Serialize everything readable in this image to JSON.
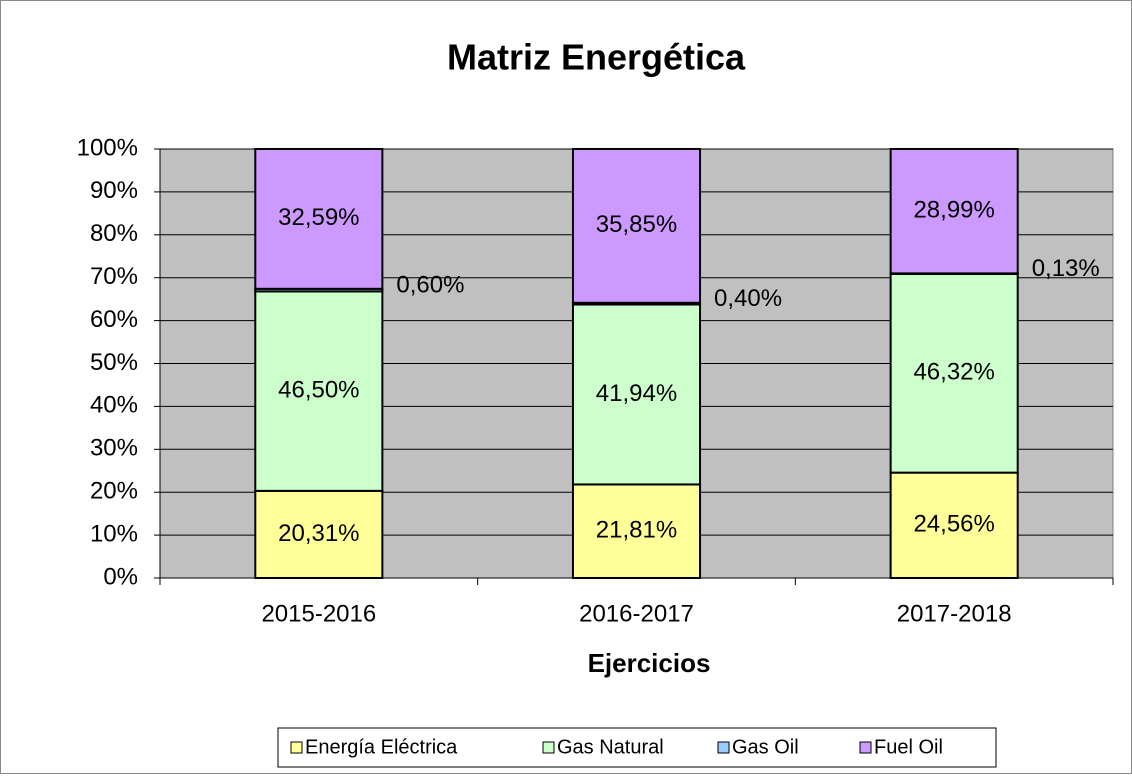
{
  "chart_data": {
    "type": "bar",
    "stacked": true,
    "title": "Matriz Energética",
    "x_label": "Ejercicios",
    "categories": [
      "2015-2016",
      "2016-2017",
      "2017-2018"
    ],
    "series": [
      {
        "name": "Energía Eléctrica",
        "color": "#ffff99",
        "values": [
          20.31,
          21.81,
          24.56
        ],
        "value_labels": [
          "20,31%",
          "21,81%",
          "24,56%"
        ]
      },
      {
        "name": "Gas Natural",
        "color": "#ccffcc",
        "values": [
          46.5,
          41.94,
          46.32
        ],
        "value_labels": [
          "46,50%",
          "41,94%",
          "46,32%"
        ]
      },
      {
        "name": "Gas Oil",
        "color": "#99ccff",
        "values": [
          0.6,
          0.4,
          0.13
        ],
        "value_labels": [
          "0,60%",
          "0,40%",
          "0,13%"
        ]
      },
      {
        "name": "Fuel Oil",
        "color": "#cc99ff",
        "values": [
          32.59,
          35.85,
          28.99
        ],
        "value_labels": [
          "32,59%",
          "35,85%",
          "28,99%"
        ]
      }
    ],
    "ylim": [
      0,
      100
    ],
    "yticks": [
      {
        "value": 0,
        "label": "0%"
      },
      {
        "value": 10,
        "label": "10%"
      },
      {
        "value": 20,
        "label": "20%"
      },
      {
        "value": 30,
        "label": "30%"
      },
      {
        "value": 40,
        "label": "40%"
      },
      {
        "value": 50,
        "label": "50%"
      },
      {
        "value": 60,
        "label": "60%"
      },
      {
        "value": 70,
        "label": "70%"
      },
      {
        "value": 80,
        "label": "80%"
      },
      {
        "value": 90,
        "label": "90%"
      },
      {
        "value": 100,
        "label": "100%"
      }
    ],
    "grid": true,
    "plot_background": "#c0c0c0",
    "legend": "bottom"
  }
}
